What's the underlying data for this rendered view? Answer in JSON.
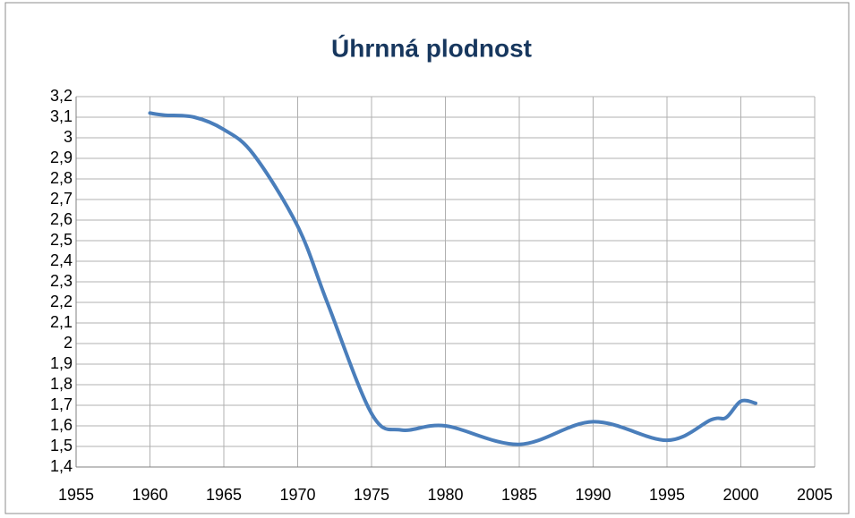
{
  "chart_data": {
    "type": "line",
    "title": "Úhrnná plodnost",
    "x": [
      1960,
      1961,
      1963,
      1965,
      1967,
      1970,
      1972,
      1975,
      1977,
      1980,
      1985,
      1990,
      1995,
      1998,
      1999,
      2000,
      2001
    ],
    "series": [
      {
        "name": "Úhrnná plodnost",
        "color": "#4a7ebb",
        "values": [
          3.12,
          3.11,
          3.1,
          3.04,
          2.92,
          2.57,
          2.2,
          1.66,
          1.58,
          1.6,
          1.51,
          1.62,
          1.53,
          1.63,
          1.64,
          1.72,
          1.71
        ]
      }
    ],
    "xlim": [
      1955,
      2005
    ],
    "xticks": [
      1955,
      1960,
      1965,
      1970,
      1975,
      1980,
      1985,
      1990,
      1995,
      2000,
      2005
    ],
    "ylim": [
      1.4,
      3.2
    ],
    "yticks": [
      {
        "value": 1.4,
        "label": "1,4"
      },
      {
        "value": 1.5,
        "label": "1,5"
      },
      {
        "value": 1.6,
        "label": "1,6"
      },
      {
        "value": 1.7,
        "label": "1,7"
      },
      {
        "value": 1.8,
        "label": "1,8"
      },
      {
        "value": 1.9,
        "label": "1,9"
      },
      2,
      {
        "value": 2.1,
        "label": "2,1"
      },
      {
        "value": 2.2,
        "label": "2,2"
      },
      {
        "value": 2.3,
        "label": "2,3"
      },
      {
        "value": 2.4,
        "label": "2,4"
      },
      {
        "value": 2.5,
        "label": "2,5"
      },
      {
        "value": 2.6,
        "label": "2,6"
      },
      {
        "value": 2.7,
        "label": "2,7"
      },
      {
        "value": 2.8,
        "label": "2,8"
      },
      {
        "value": 2.9,
        "label": "2,9"
      },
      3,
      {
        "value": 3.1,
        "label": "3,1"
      },
      {
        "value": 3.2,
        "label": "3,2"
      }
    ],
    "grid": true
  }
}
